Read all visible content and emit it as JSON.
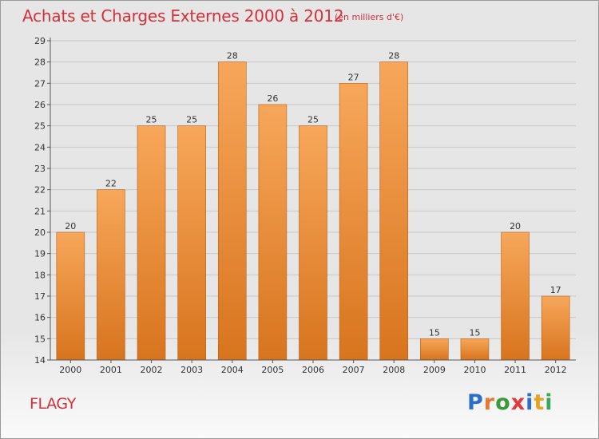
{
  "header": {
    "title": "Achats et Charges Externes 2000 à 2012",
    "unit": "(en milliers d'€)"
  },
  "footer": {
    "commune": "FLAGY",
    "brand": [
      "P",
      "r",
      "o",
      "x",
      "i",
      "t",
      "i"
    ],
    "brand_colors": [
      "#2a6fc9",
      "#e8772e",
      "#3a9a3a",
      "#e23a3a",
      "#2a6fc9",
      "#e8a020",
      "#3aa85a"
    ]
  },
  "colors": {
    "bar_light": "#f7a75a",
    "bar_dark": "#d8741e",
    "bar_edge": "#b85f16",
    "axis": "#555555",
    "grid": "#c8c8c8"
  },
  "chart_data": {
    "type": "bar",
    "title": "Achats et Charges Externes 2000 à 2012",
    "subtitle": "(en milliers d'€)",
    "xlabel": "",
    "ylabel": "",
    "categories": [
      "2000",
      "2001",
      "2002",
      "2003",
      "2004",
      "2005",
      "2006",
      "2007",
      "2008",
      "2009",
      "2010",
      "2011",
      "2012"
    ],
    "values": [
      20,
      22,
      25,
      25,
      28,
      26,
      25,
      27,
      28,
      15,
      15,
      20,
      17
    ],
    "value_labels": [
      "20",
      "22",
      "25",
      "25",
      "28",
      "26",
      "25",
      "27",
      "28",
      "15",
      "15",
      "20",
      "17"
    ],
    "ylim": [
      14,
      29
    ],
    "yticks": [
      "14",
      "15",
      "16",
      "17",
      "18",
      "19",
      "20",
      "21",
      "22",
      "23",
      "24",
      "25",
      "26",
      "27",
      "28",
      "29"
    ],
    "grid": true,
    "legend": "none"
  }
}
